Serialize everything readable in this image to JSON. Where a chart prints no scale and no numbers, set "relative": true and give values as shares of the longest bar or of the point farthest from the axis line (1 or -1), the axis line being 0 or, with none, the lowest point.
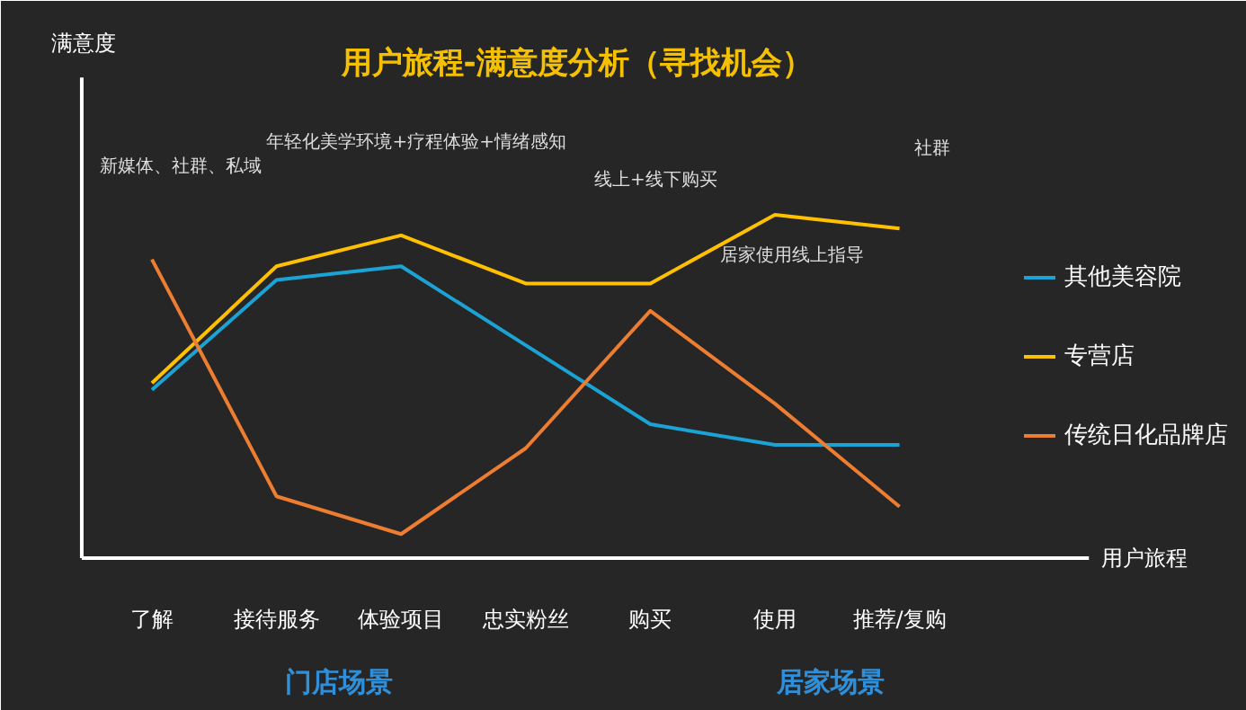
{
  "chart_data": {
    "type": "line",
    "title": "用户旅程-满意度分析（寻找机会）",
    "relative": true,
    "legend": "right",
    "grid": false,
    "categories": [
      "了解",
      "接待服务",
      "体验项目",
      "忠实粉丝",
      "购买",
      "使用",
      "推荐/复购"
    ],
    "series": [
      {
        "name": "其他美容院",
        "color": "#1ba3d6",
        "values": [
          0.49,
          0.81,
          0.85,
          0.62,
          0.39,
          0.33,
          0.33
        ]
      },
      {
        "name": "专营店",
        "color": "#ffc000",
        "values": [
          0.51,
          0.85,
          0.94,
          0.8,
          0.8,
          1,
          0.96
        ]
      },
      {
        "name": "传统日化品牌店",
        "color": "#ed7d31",
        "values": [
          0.87,
          0.18,
          0.07,
          0.32,
          0.72,
          0.45,
          0.15
        ]
      }
    ],
    "annotations": [
      "新媒体、社群、私域",
      "年轻化美学环境+疗程体验+情绪感知",
      "线上+线下购买",
      "居家使用线上指导",
      "社群",
      "门店场景",
      "居家场景",
      "用户旅程",
      "满意度"
    ]
  }
}
